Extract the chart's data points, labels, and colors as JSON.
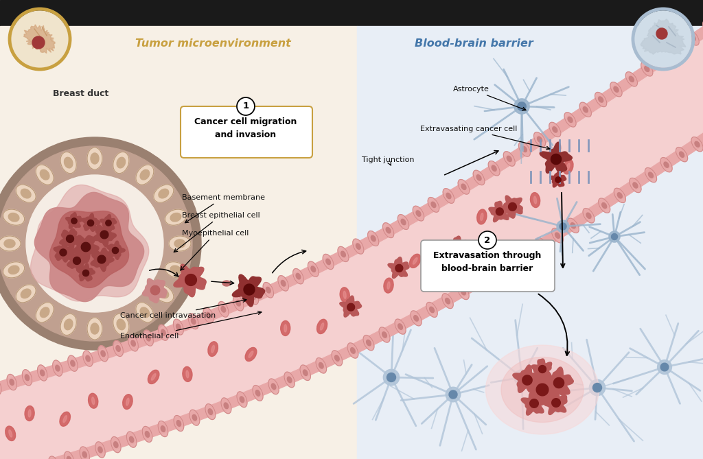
{
  "left_bg_color": "#f7f0e6",
  "right_bg_color": "#e8eef6",
  "top_bar_color": "#1a1a1a",
  "tumor_micro_label": "Tumor microenvironment",
  "bbb_label": "Blood-brain barrier",
  "tumor_micro_color": "#c8a040",
  "bbb_color": "#4477aa",
  "breast_duct_label": "Breast duct",
  "basement_membrane_label": "Basement membrane",
  "breast_epithelial_label": "Breast epithelial cell",
  "myoepithelial_label": "Myoepithelial cell",
  "cancer_intravasation_label": "Cancer cell intravasation",
  "endothelial_label": "Endothelial cell",
  "box1_label": "Cancer cell migration\nand invasion",
  "box2_label": "Extravasation through\nblood-brain barrier",
  "astrocyte_label": "Astrocyte",
  "extravasating_label": "Extravasating cancer cell",
  "tight_junction_label": "Tight junction",
  "vessel_wall_color": "#e8a8a8",
  "vessel_lumen_color": "#f5d0d0",
  "vessel_edge_color": "#d08888",
  "rbc_color": "#d06060",
  "rbc_inner_color": "#e88888",
  "cancer_cell_body": "#b85858",
  "cancer_cell_nucleus": "#7a1818",
  "duct_outer_color": "#9a8070",
  "duct_mid_color": "#c0a090",
  "duct_epi_color": "#ecd5c0",
  "duct_epi_nucleus": "#c8a888",
  "duct_lumen_color": "#f5ede5",
  "tumor_outer_color": "#cc8888",
  "tumor_mid_color": "#b86060",
  "tumor_inner_color": "#a04848",
  "astrocyte_color": "#9ab4cc",
  "astrocyte_body_color": "#aac0d8",
  "astrocyte_nucleus_color": "#6688aa",
  "metastasis_glow1": "#f8d8d8",
  "metastasis_glow2": "#f0c0c0",
  "box1_border": "#c8a040",
  "box2_border": "#999999",
  "annotation_color": "#111111",
  "tight_junction_color": "#8899bb"
}
